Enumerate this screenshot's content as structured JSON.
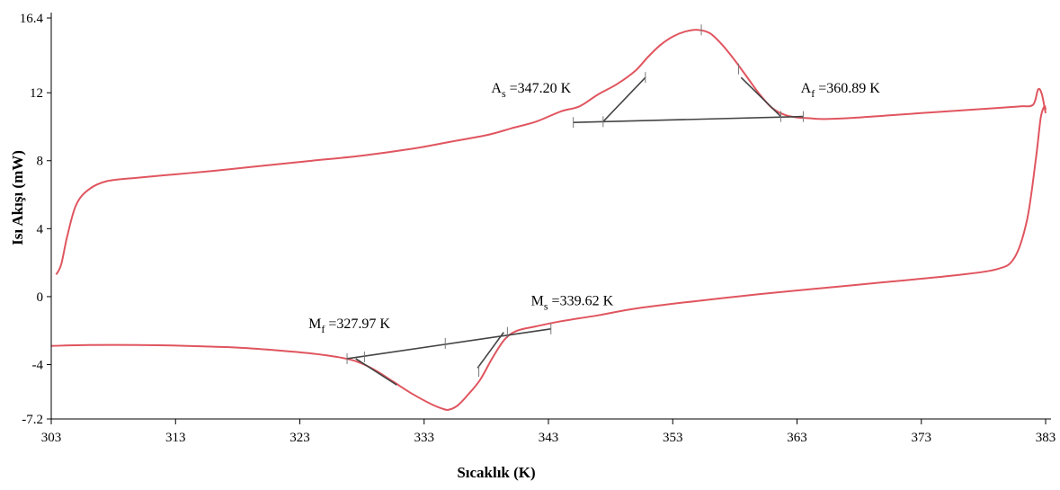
{
  "chart_data": {
    "type": "line",
    "title": "",
    "xlabel": "Sıcaklık (K)",
    "ylabel": "Isı Akışı (mW)",
    "xlim": [
      303,
      383
    ],
    "ylim": [
      -7.2,
      16.4
    ],
    "xticks": [
      303,
      313,
      323,
      333,
      343,
      353,
      363,
      373,
      383
    ],
    "yticks": [
      16.4,
      12,
      8,
      4,
      0,
      -4,
      -7.2
    ],
    "xtick_labels": [
      "303",
      "313",
      "323",
      "333",
      "343",
      "353",
      "363",
      "373",
      "383"
    ],
    "ytick_labels": [
      "16.4",
      "12",
      "8",
      "4",
      "0",
      "-4",
      "-7.2"
    ],
    "grid": false,
    "legend": "none",
    "line_color": "#e0555f",
    "baseline_color": "#444444",
    "series": [
      {
        "key": "heating",
        "x": [
          303.4,
          303.8,
          304.3,
          305,
          306,
          307.5,
          310,
          313,
          316,
          320,
          324,
          328,
          332,
          335,
          338,
          340,
          342,
          344,
          345.5,
          347,
          348.5,
          350,
          351,
          352,
          353,
          354,
          355,
          356,
          357,
          358,
          359,
          360,
          361,
          362,
          363,
          364,
          365,
          367,
          370,
          373,
          376,
          379,
          381,
          382,
          382.4,
          382.7,
          383
        ],
        "y": [
          1.3,
          1.9,
          3.6,
          5.4,
          6.3,
          6.8,
          7.0,
          7.2,
          7.4,
          7.7,
          8.0,
          8.3,
          8.7,
          9.1,
          9.5,
          9.9,
          10.3,
          10.9,
          11.2,
          11.9,
          12.5,
          13.3,
          14.1,
          14.8,
          15.3,
          15.6,
          15.7,
          15.5,
          14.8,
          13.9,
          12.9,
          11.9,
          11.1,
          10.7,
          10.55,
          10.5,
          10.45,
          10.5,
          10.65,
          10.8,
          10.95,
          11.1,
          11.2,
          11.3,
          12.2,
          11.9,
          10.8
        ]
      },
      {
        "key": "cooling",
        "x": [
          303,
          306,
          310,
          314,
          318,
          321,
          324,
          326,
          327.5,
          329,
          330.5,
          332,
          333.5,
          334.5,
          335,
          335.7,
          336.5,
          337.5,
          338.5,
          339.5,
          340.5,
          342,
          344,
          347,
          350,
          355,
          360,
          365,
          370,
          375,
          379,
          380.5,
          381.5,
          382.2,
          382.6,
          382.9,
          383
        ],
        "y": [
          -2.9,
          -2.85,
          -2.85,
          -2.9,
          -3.0,
          -3.15,
          -3.35,
          -3.55,
          -3.8,
          -4.3,
          -5.0,
          -5.7,
          -6.3,
          -6.6,
          -6.65,
          -6.4,
          -5.8,
          -4.9,
          -3.6,
          -2.5,
          -2.0,
          -1.75,
          -1.45,
          -1.1,
          -0.7,
          -0.25,
          0.15,
          0.5,
          0.85,
          1.2,
          1.6,
          2.3,
          4.5,
          8.0,
          10.5,
          11.2,
          11.0
        ]
      }
    ],
    "baselines": [
      {
        "x": [
          345,
          363.5
        ],
        "y": [
          10.25,
          10.6
        ]
      },
      {
        "x": [
          326.8,
          343.2
        ],
        "y": [
          -3.65,
          -1.9
        ]
      }
    ],
    "tangents": [
      {
        "x": [
          347.4,
          350.8
        ],
        "y": [
          10.3,
          12.9
        ]
      },
      {
        "x": [
          358.5,
          361.7
        ],
        "y": [
          12.9,
          10.6
        ]
      },
      {
        "x": [
          327.5,
          330.8
        ],
        "y": [
          -3.65,
          -5.2
        ]
      },
      {
        "x": [
          337.3,
          339.4
        ],
        "y": [
          -4.2,
          -2.1
        ]
      }
    ],
    "tick_marks": [
      {
        "x": 345,
        "y": 10.25
      },
      {
        "x": 347.4,
        "y": 10.3
      },
      {
        "x": 350.8,
        "y": 12.9
      },
      {
        "x": 355.3,
        "y": 15.7
      },
      {
        "x": 358.3,
        "y": 13.4
      },
      {
        "x": 361.7,
        "y": 10.6
      },
      {
        "x": 363.5,
        "y": 10.6
      },
      {
        "x": 326.8,
        "y": -3.65
      },
      {
        "x": 328.2,
        "y": -3.55
      },
      {
        "x": 334.7,
        "y": -2.75
      },
      {
        "x": 337.4,
        "y": -4.4
      },
      {
        "x": 339.7,
        "y": -2.1
      },
      {
        "x": 343.2,
        "y": -1.9
      }
    ],
    "annotations": [
      {
        "key": "as",
        "main": "A",
        "sub": "s",
        "value": " =347.20 K",
        "x": 338.4,
        "y": 12
      },
      {
        "key": "af",
        "main": "A",
        "sub": "f",
        "value": " =360.89 K",
        "x": 363.3,
        "y": 12
      },
      {
        "key": "ms",
        "main": "M",
        "sub": "s",
        "value": " =339.62 K",
        "x": 341.6,
        "y": -0.5
      },
      {
        "key": "mf",
        "main": "M",
        "sub": "f",
        "value": " =327.97 K",
        "x": 323.7,
        "y": -1.85
      }
    ]
  }
}
